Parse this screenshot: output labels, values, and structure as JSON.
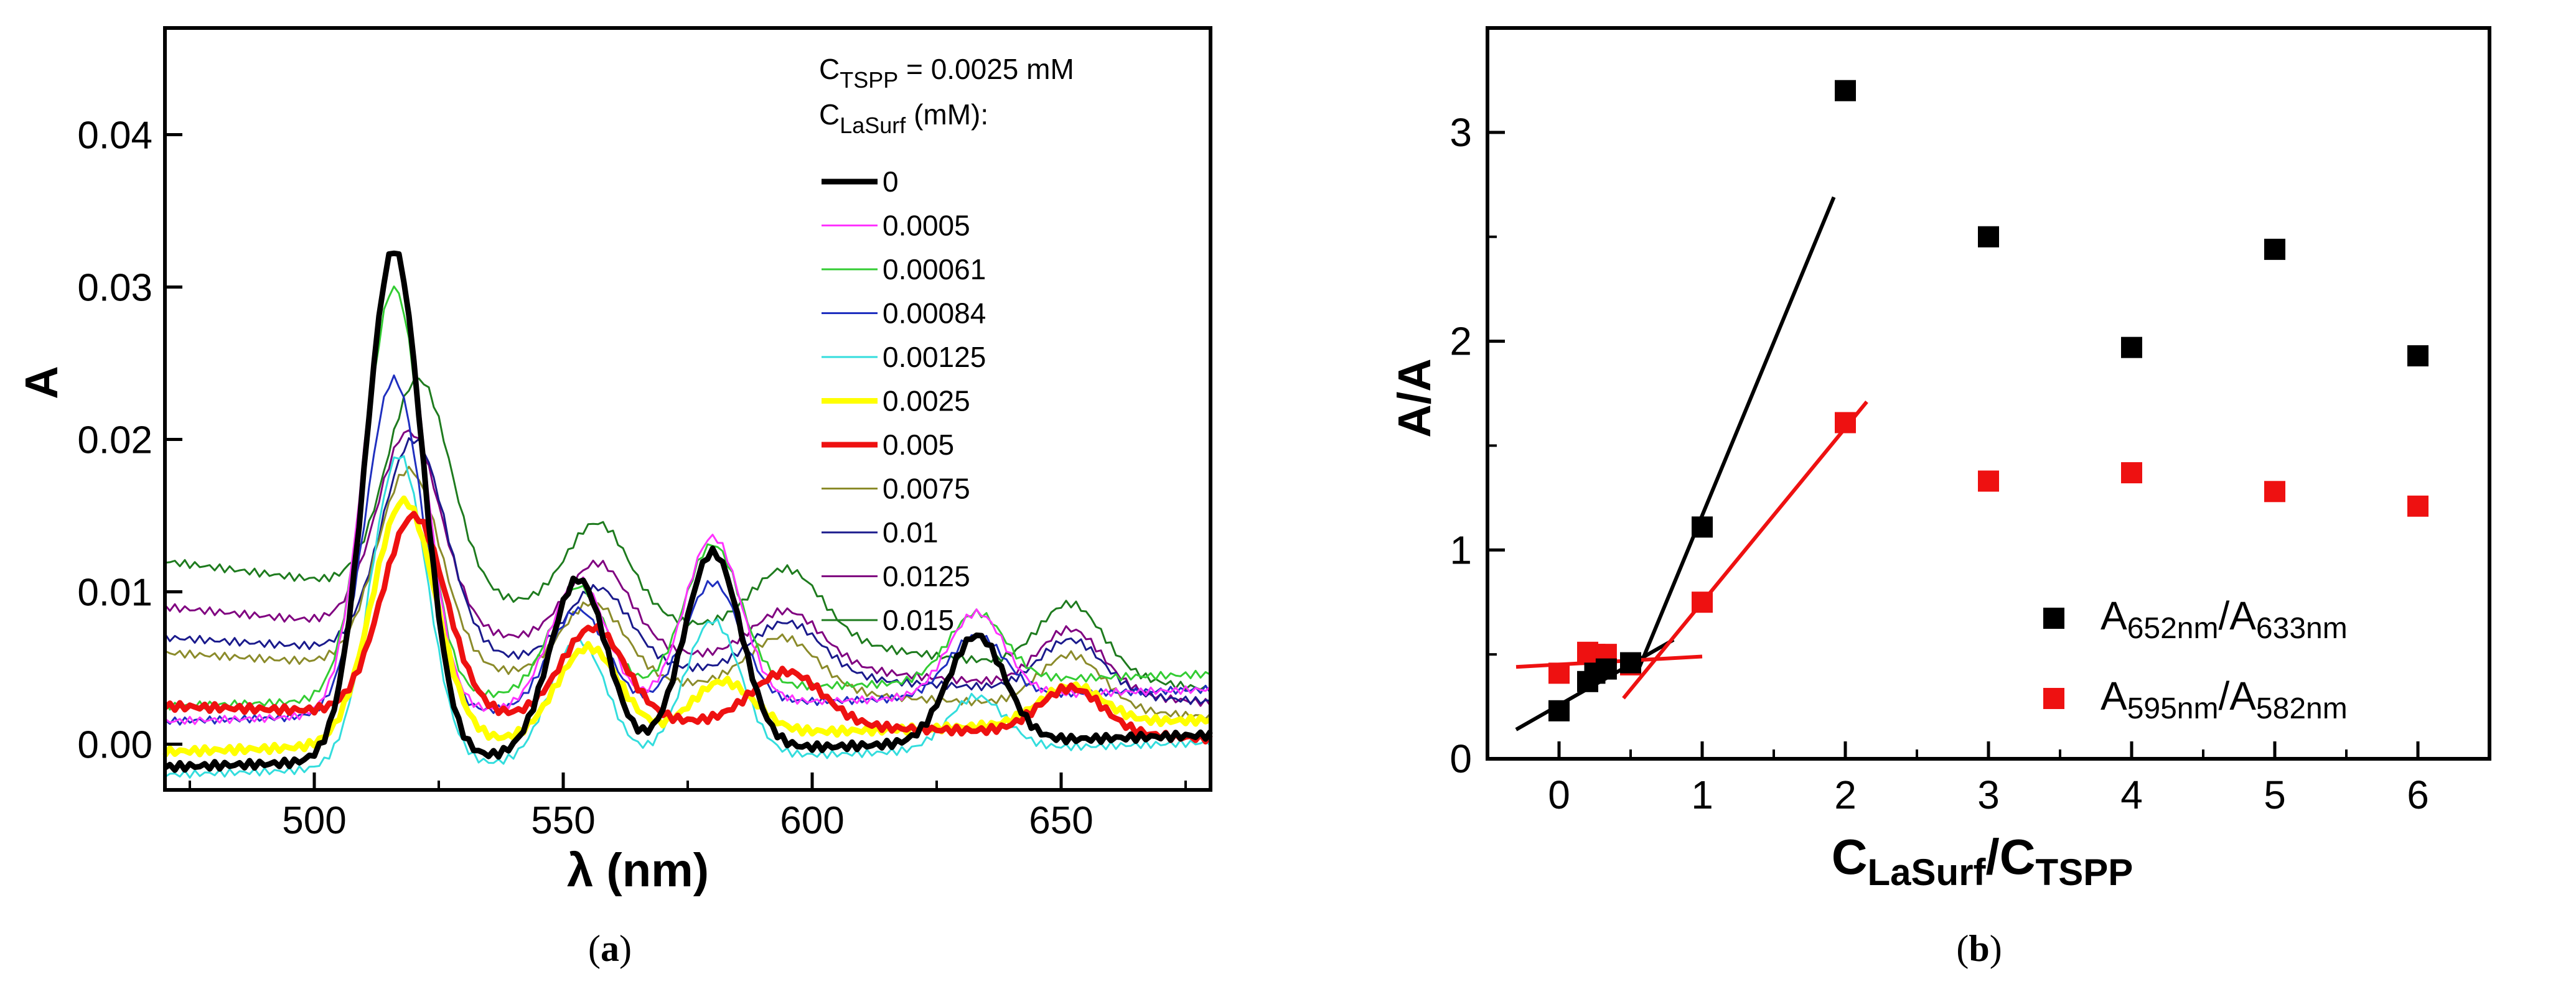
{
  "figure": {
    "panel_a": {
      "caption_open": "(",
      "caption_letter": "a",
      "caption_close": ")"
    },
    "panel_b": {
      "caption_open": "(",
      "caption_letter": "b",
      "caption_close": ")"
    }
  },
  "chart_data": [
    {
      "id": "a",
      "type": "line",
      "xlabel": "λ (nm)",
      "ylabel": "A",
      "xlim": [
        470,
        680
      ],
      "ylim": [
        -0.003,
        0.047
      ],
      "xticks": [
        500,
        550,
        600,
        650
      ],
      "yticks": [
        0.0,
        0.01,
        0.02,
        0.03,
        0.04
      ],
      "ytick_labels": [
        "0.00",
        "0.01",
        "0.02",
        "0.03",
        "0.04"
      ],
      "legend_header": {
        "line1_main": "C",
        "line1_sub": "TSPP",
        "line1_rest": " = 0.0025 mM",
        "line2_main": "C",
        "line2_sub": "LaSurf",
        "line2_rest": " (mM):"
      },
      "legend_position": "top-right",
      "series": [
        {
          "name": "0",
          "color": "#000000",
          "bold": true,
          "baseline": -0.0015,
          "bl_slope": 1e-05,
          "peaks": [
            [
              516,
              0.0335,
              8
            ],
            [
              553,
              0.0115,
              8
            ],
            [
              580,
              0.013,
              8
            ],
            [
              633,
              0.007,
              8
            ]
          ]
        },
        {
          "name": "0.0005",
          "color": "#ff33ff",
          "bold": false,
          "baseline": 0.0015,
          "bl_slope": 1e-05,
          "peaks": [
            [
              516,
              0.0305,
              8
            ],
            [
              553,
              0.0085,
              8
            ],
            [
              580,
              0.011,
              8
            ],
            [
              633,
              0.0055,
              8
            ]
          ]
        },
        {
          "name": "0.00061",
          "color": "#33cc33",
          "bold": false,
          "baseline": 0.0025,
          "bl_slope": 1e-05,
          "peaks": [
            [
              516,
              0.027,
              8
            ],
            [
              553,
              0.007,
              8
            ],
            [
              580,
              0.0095,
              8
            ],
            [
              633,
              0.0045,
              8
            ]
          ]
        },
        {
          "name": "0.00084",
          "color": "#1f2fbf",
          "bold": false,
          "baseline": 0.0015,
          "bl_slope": 1e-05,
          "peaks": [
            [
              516,
              0.022,
              8
            ],
            [
              553,
              0.0065,
              8
            ],
            [
              580,
              0.008,
              8
            ],
            [
              633,
              0.004,
              8
            ]
          ]
        },
        {
          "name": "0.00125",
          "color": "#33dddd",
          "bold": false,
          "baseline": -0.002,
          "bl_slope": 1e-05,
          "peaks": [
            [
              517,
              0.0205,
              8
            ],
            [
              553,
              0.008,
              8
            ],
            [
              580,
              0.009,
              8
            ],
            [
              633,
              0.0035,
              8
            ]
          ]
        },
        {
          "name": "0.0025",
          "color": "#ffff00",
          "bold": true,
          "baseline": -0.0005,
          "bl_slope": 1e-05,
          "peaks": [
            [
              518,
              0.016,
              9
            ],
            [
              555,
              0.006,
              9
            ],
            [
              582,
              0.0035,
              9
            ],
            [
              652,
              0.0025,
              9
            ]
          ]
        },
        {
          "name": "0.005",
          "color": "#ee1111",
          "bold": true,
          "baseline": 0.0025,
          "bl_slope": -1e-05,
          "peaks": [
            [
              520,
              0.013,
              9
            ],
            [
              556,
              0.006,
              9
            ],
            [
              595,
              0.0035,
              10
            ],
            [
              652,
              0.003,
              9
            ]
          ]
        },
        {
          "name": "0.0075",
          "color": "#8b8b2a",
          "bold": false,
          "baseline": 0.006,
          "bl_slope": -2e-05,
          "peaks": [
            [
              519,
              0.013,
              9
            ],
            [
              556,
              0.005,
              9
            ],
            [
              594,
              0.0035,
              10
            ],
            [
              652,
              0.0035,
              9
            ]
          ]
        },
        {
          "name": "0.01",
          "color": "#1a1a8c",
          "bold": false,
          "baseline": 0.007,
          "bl_slope": -2e-05,
          "peaks": [
            [
              520,
              0.014,
              9
            ],
            [
              557,
              0.005,
              9
            ],
            [
              595,
              0.0035,
              10
            ],
            [
              652,
              0.0035,
              9
            ]
          ]
        },
        {
          "name": "0.0125",
          "color": "#800080",
          "bold": false,
          "baseline": 0.009,
          "bl_slope": -3e-05,
          "peaks": [
            [
              519,
              0.013,
              9
            ],
            [
              557,
              0.0055,
              9
            ],
            [
              595,
              0.0035,
              10
            ],
            [
              652,
              0.004,
              9
            ]
          ]
        },
        {
          "name": "0.015",
          "color": "#1e7b1e",
          "bold": false,
          "baseline": 0.012,
          "bl_slope": -4e-05,
          "peaks": [
            [
              521,
              0.014,
              9
            ],
            [
              557,
              0.006,
              9
            ],
            [
              595,
              0.0045,
              10
            ],
            [
              652,
              0.0045,
              9
            ]
          ]
        }
      ]
    },
    {
      "id": "b",
      "type": "scatter",
      "xlabel_main1": "C",
      "xlabel_sub1": "LaSurf",
      "xlabel_mid": "/C",
      "xlabel_sub2": "TSPP",
      "ylabel": "A/A",
      "xlim": [
        -0.5,
        6.5
      ],
      "ylim": [
        0,
        3.5
      ],
      "xticks": [
        0,
        1,
        2,
        3,
        4,
        5,
        6
      ],
      "yticks": [
        0,
        1,
        2,
        3
      ],
      "legend_position": "bottom-right",
      "series": [
        {
          "label_a_main": "A",
          "label_a_sub": "652nm",
          "label_slash": "/",
          "label_b_main": "A",
          "label_b_sub": "633nm",
          "color": "#000000",
          "x": [
            0,
            0.2,
            0.25,
            0.33,
            0.5,
            1,
            2,
            3,
            4,
            5,
            6
          ],
          "y": [
            0.23,
            0.37,
            0.41,
            0.43,
            0.46,
            1.11,
            3.2,
            2.5,
            1.97,
            2.44,
            1.93
          ],
          "fit_lines": [
            {
              "x": [
                -0.3,
                0.8
              ],
              "y": [
                0.14,
                0.57
              ]
            },
            {
              "x": [
                0.55,
                1.92
              ],
              "y": [
                0.42,
                2.69
              ]
            }
          ]
        },
        {
          "label_a_main": "A",
          "label_a_sub": "595nm",
          "label_slash": "/",
          "label_b_main": "A",
          "label_b_sub": "582nm",
          "color": "#ee1111",
          "x": [
            0,
            0.2,
            0.25,
            0.33,
            0.5,
            1,
            2,
            3,
            4,
            5,
            6
          ],
          "y": [
            0.41,
            0.51,
            0.5,
            0.5,
            0.45,
            0.75,
            1.61,
            1.33,
            1.37,
            1.28,
            1.21
          ],
          "fit_lines": [
            {
              "x": [
                -0.3,
                1.0
              ],
              "y": [
                0.44,
                0.49
              ]
            },
            {
              "x": [
                0.45,
                2.15
              ],
              "y": [
                0.29,
                1.71
              ]
            }
          ]
        }
      ]
    }
  ]
}
